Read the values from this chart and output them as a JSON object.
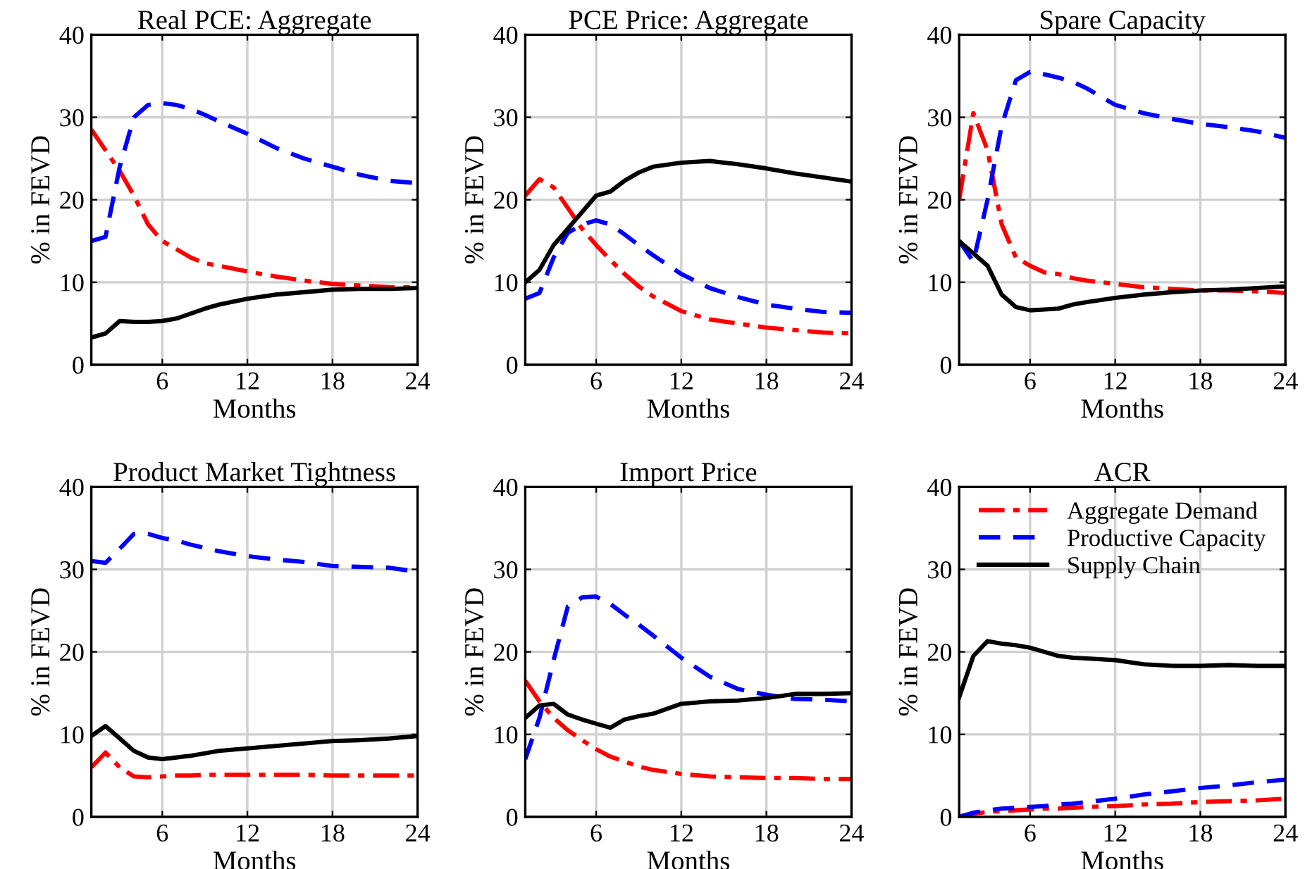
{
  "chart_data": [
    {
      "type": "line",
      "title": "Real PCE: Aggregate",
      "xlabel": "Months",
      "ylabel": "% in FEVD",
      "x": [
        1,
        2,
        3,
        4,
        5,
        6,
        7,
        8,
        9,
        10,
        12,
        14,
        16,
        18,
        20,
        22,
        24
      ],
      "xlim": [
        1,
        24
      ],
      "xticks": [
        6,
        12,
        18,
        24
      ],
      "ylim": [
        0,
        40
      ],
      "yticks": [
        0,
        10,
        20,
        30,
        40
      ],
      "grid": true,
      "series": [
        {
          "color": "#ff0000",
          "line_style": "dashdot",
          "values": [
            28.5,
            26,
            23.5,
            20.5,
            17,
            15,
            14,
            13,
            12.3,
            12,
            11.3,
            10.7,
            10.2,
            9.8,
            9.6,
            9.4,
            9.4
          ]
        },
        {
          "color": "#0000ff",
          "line_style": "dashed",
          "values": [
            15,
            15.5,
            24,
            30,
            31.5,
            31.7,
            31.5,
            31,
            30.3,
            29.5,
            28,
            26.3,
            25,
            24,
            23,
            22.3,
            22
          ]
        },
        {
          "color": "#000000",
          "line_style": "solid",
          "values": [
            3.3,
            3.8,
            5.3,
            5.2,
            5.2,
            5.3,
            5.6,
            6.2,
            6.8,
            7.3,
            8.0,
            8.5,
            8.8,
            9.1,
            9.2,
            9.2,
            9.3
          ]
        }
      ]
    },
    {
      "type": "line",
      "title": "PCE Price: Aggregate",
      "xlabel": "Months",
      "ylabel": "% in FEVD",
      "x": [
        1,
        2,
        3,
        4,
        5,
        6,
        7,
        8,
        9,
        10,
        12,
        14,
        16,
        18,
        20,
        22,
        24
      ],
      "xlim": [
        1,
        24
      ],
      "xticks": [
        6,
        12,
        18,
        24
      ],
      "ylim": [
        0,
        40
      ],
      "yticks": [
        0,
        10,
        20,
        30,
        40
      ],
      "grid": true,
      "series": [
        {
          "color": "#ff0000",
          "line_style": "dashdot",
          "values": [
            20.5,
            22.5,
            21.5,
            19,
            16.5,
            14.5,
            12.7,
            11,
            9.5,
            8.3,
            6.5,
            5.5,
            5,
            4.5,
            4.2,
            3.9,
            3.8
          ]
        },
        {
          "color": "#0000ff",
          "line_style": "dashed",
          "values": [
            8,
            8.7,
            13,
            16,
            17,
            17.5,
            17,
            15.8,
            14.5,
            13.3,
            11,
            9.3,
            8.2,
            7.3,
            6.8,
            6.4,
            6.3
          ]
        },
        {
          "color": "#000000",
          "line_style": "solid",
          "values": [
            10,
            11.5,
            14.5,
            16.5,
            18.5,
            20.5,
            21,
            22.3,
            23.3,
            24,
            24.5,
            24.7,
            24.3,
            23.8,
            23.2,
            22.7,
            22.2
          ]
        }
      ]
    },
    {
      "type": "line",
      "title": "Spare Capacity",
      "xlabel": "Months",
      "ylabel": "% in FEVD",
      "x": [
        1,
        2,
        3,
        4,
        5,
        6,
        7,
        8,
        9,
        10,
        12,
        14,
        16,
        18,
        20,
        22,
        24
      ],
      "xlim": [
        1,
        24
      ],
      "xticks": [
        6,
        12,
        18,
        24
      ],
      "ylim": [
        0,
        40
      ],
      "yticks": [
        0,
        10,
        20,
        30,
        40
      ],
      "grid": true,
      "series": [
        {
          "color": "#ff0000",
          "line_style": "dashdot",
          "values": [
            20,
            30.5,
            26,
            17,
            13,
            12,
            11.2,
            11,
            10.5,
            10.2,
            9.8,
            9.4,
            9.2,
            9,
            9,
            8.9,
            8.7
          ]
        },
        {
          "color": "#0000ff",
          "line_style": "dashed",
          "values": [
            15,
            12.5,
            20,
            29,
            34.5,
            35.5,
            35.2,
            34.8,
            34.3,
            33.5,
            31.5,
            30.5,
            29.8,
            29.2,
            28.8,
            28.3,
            27.5
          ]
        },
        {
          "color": "#000000",
          "line_style": "solid",
          "values": [
            15,
            13.5,
            12,
            8.5,
            7,
            6.6,
            6.7,
            6.8,
            7.3,
            7.6,
            8.1,
            8.5,
            8.8,
            9,
            9.1,
            9.3,
            9.5
          ]
        }
      ]
    },
    {
      "type": "line",
      "title": "Product Market Tightness",
      "xlabel": "Months",
      "ylabel": "% in FEVD",
      "x": [
        1,
        2,
        3,
        4,
        5,
        6,
        7,
        8,
        9,
        10,
        12,
        14,
        16,
        18,
        20,
        22,
        24
      ],
      "xlim": [
        1,
        24
      ],
      "xticks": [
        6,
        12,
        18,
        24
      ],
      "ylim": [
        0,
        40
      ],
      "yticks": [
        0,
        10,
        20,
        30,
        40
      ],
      "grid": true,
      "series": [
        {
          "color": "#ff0000",
          "line_style": "dashdot",
          "values": [
            6,
            7.8,
            6,
            4.9,
            4.8,
            4.9,
            5.0,
            5.0,
            5.1,
            5.1,
            5.1,
            5.1,
            5.1,
            5.0,
            5.0,
            5.0,
            5.0
          ]
        },
        {
          "color": "#0000ff",
          "line_style": "dashed",
          "values": [
            31,
            30.8,
            32.5,
            34.3,
            34.3,
            33.8,
            33.5,
            33,
            32.6,
            32.2,
            31.6,
            31.2,
            30.9,
            30.4,
            30.3,
            30.2,
            29.7
          ]
        },
        {
          "color": "#000000",
          "line_style": "solid",
          "values": [
            9.8,
            11,
            9.5,
            8,
            7.2,
            7,
            7.2,
            7.4,
            7.7,
            8,
            8.3,
            8.6,
            8.9,
            9.2,
            9.3,
            9.5,
            9.8
          ]
        }
      ]
    },
    {
      "type": "line",
      "title": "Import Price",
      "xlabel": "Months",
      "ylabel": "% in FEVD",
      "x": [
        1,
        2,
        3,
        4,
        5,
        6,
        7,
        8,
        9,
        10,
        12,
        14,
        16,
        18,
        20,
        22,
        24
      ],
      "xlim": [
        1,
        24
      ],
      "xticks": [
        6,
        12,
        18,
        24
      ],
      "ylim": [
        0,
        40
      ],
      "yticks": [
        0,
        10,
        20,
        30,
        40
      ],
      "grid": true,
      "series": [
        {
          "color": "#ff0000",
          "line_style": "dashdot",
          "values": [
            16.5,
            14,
            12,
            10.5,
            9.3,
            8.2,
            7.3,
            6.7,
            6.1,
            5.7,
            5.2,
            4.9,
            4.8,
            4.7,
            4.7,
            4.6,
            4.6
          ]
        },
        {
          "color": "#0000ff",
          "line_style": "dashed",
          "values": [
            7,
            12,
            19,
            25.5,
            26.6,
            26.7,
            25.8,
            24.5,
            23.3,
            22,
            19.3,
            17,
            15.5,
            14.8,
            14.3,
            14.2,
            14.0
          ]
        },
        {
          "color": "#000000",
          "line_style": "solid",
          "values": [
            12,
            13.5,
            13.7,
            12.4,
            11.8,
            11.3,
            10.8,
            11.8,
            12.2,
            12.5,
            13.7,
            14.0,
            14.1,
            14.4,
            14.9,
            14.9,
            15
          ]
        }
      ]
    },
    {
      "type": "line",
      "title": "ACR",
      "xlabel": "Months",
      "ylabel": "% in FEVD",
      "x": [
        1,
        2,
        3,
        4,
        5,
        6,
        7,
        8,
        9,
        10,
        12,
        14,
        16,
        18,
        20,
        22,
        24
      ],
      "xlim": [
        1,
        24
      ],
      "xticks": [
        6,
        12,
        18,
        24
      ],
      "ylim": [
        0,
        40
      ],
      "yticks": [
        0,
        10,
        20,
        30,
        40
      ],
      "grid": true,
      "legend": "top",
      "series": [
        {
          "name": "Aggregate Demand",
          "color": "#ff0000",
          "line_style": "dashdot",
          "values": [
            0,
            0.4,
            0.6,
            0.7,
            0.8,
            0.9,
            1.0,
            1.0,
            1.1,
            1.2,
            1.3,
            1.5,
            1.6,
            1.8,
            1.9,
            2.0,
            2.2
          ]
        },
        {
          "name": "Productive Capacity",
          "color": "#0000ff",
          "line_style": "dashed",
          "values": [
            0,
            0.5,
            0.8,
            1.0,
            1.1,
            1.2,
            1.3,
            1.5,
            1.6,
            1.8,
            2.2,
            2.7,
            3.1,
            3.5,
            3.8,
            4.2,
            4.5
          ]
        },
        {
          "name": "Supply Chain",
          "color": "#000000",
          "line_style": "solid",
          "values": [
            14.5,
            19.5,
            21.3,
            21.0,
            20.8,
            20.5,
            20,
            19.5,
            19.3,
            19.2,
            19,
            18.5,
            18.3,
            18.3,
            18.4,
            18.3,
            18.3
          ]
        }
      ]
    }
  ]
}
